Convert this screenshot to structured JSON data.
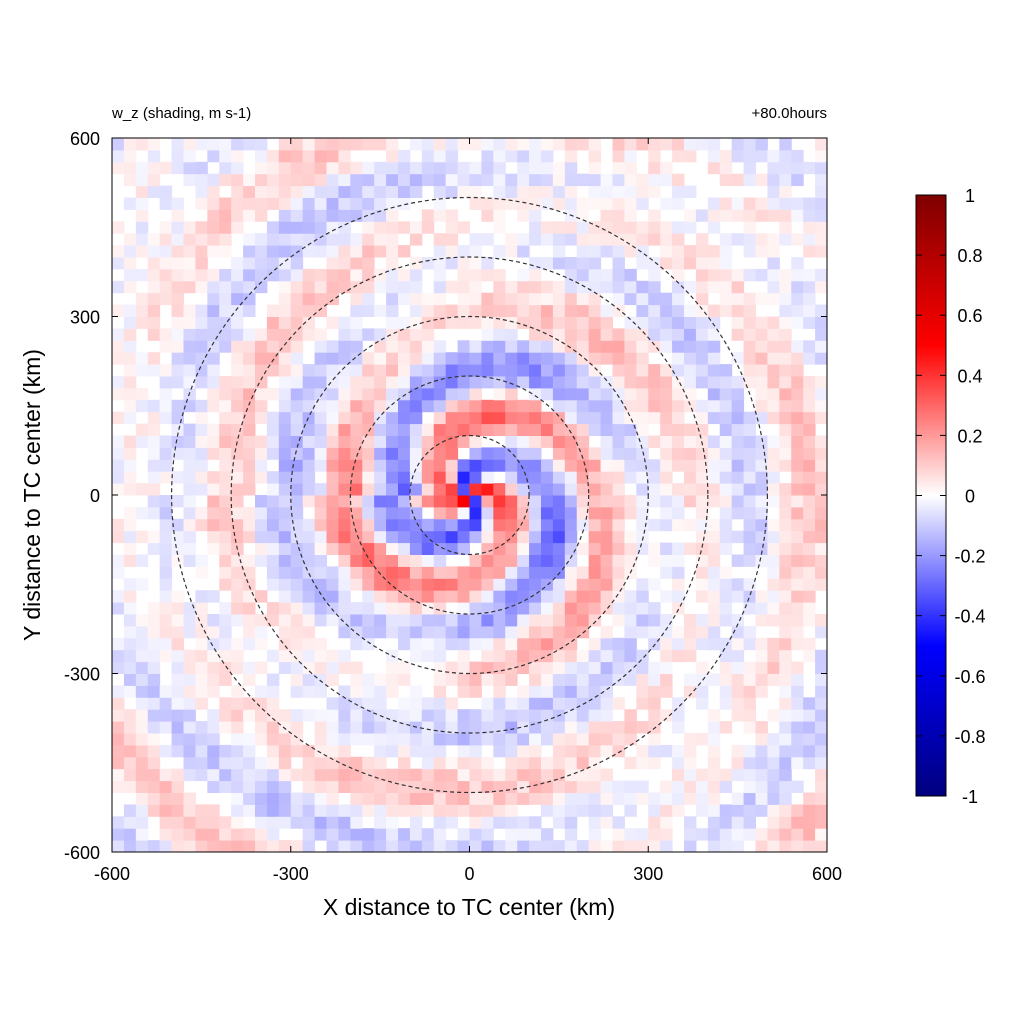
{
  "chart_data": {
    "type": "heatmap",
    "title_left": "w_z (shading, m s-1)",
    "title_right": "+80.0hours",
    "xlabel": "X distance to TC center (km)",
    "ylabel": "Y distance to TC center (km)",
    "xlim": [
      -600,
      600
    ],
    "ylim": [
      -600,
      600
    ],
    "xticks": [
      -600,
      -300,
      0,
      300,
      600
    ],
    "yticks": [
      -600,
      -300,
      0,
      300,
      600
    ],
    "xtick_labels": [
      "-600",
      "-300",
      "0",
      "300",
      "600"
    ],
    "ytick_labels": [
      "-600",
      "-300",
      "0",
      "300",
      "600"
    ],
    "circles": {
      "style": "dashed",
      "center": [
        0,
        0
      ],
      "radii_km": [
        100,
        200,
        300,
        400,
        500
      ]
    },
    "colorbar": {
      "colormap": "blue-white-red",
      "colors": [
        "#00007f",
        "#0000ff",
        "#ffffff",
        "#ff0000",
        "#7f0000"
      ],
      "range": [
        -1,
        1
      ],
      "ticks": [
        1,
        0.8,
        0.6,
        0.4,
        0.2,
        0,
        -0.2,
        -0.4,
        -0.6,
        -0.8,
        -1
      ],
      "tick_labels": [
        "1",
        "0.8",
        "0.6",
        "0.4",
        "0.2",
        "0",
        "-0.2",
        "-0.4",
        "-0.6",
        "-0.8",
        "-1"
      ]
    },
    "grid": false,
    "legend": "none"
  }
}
